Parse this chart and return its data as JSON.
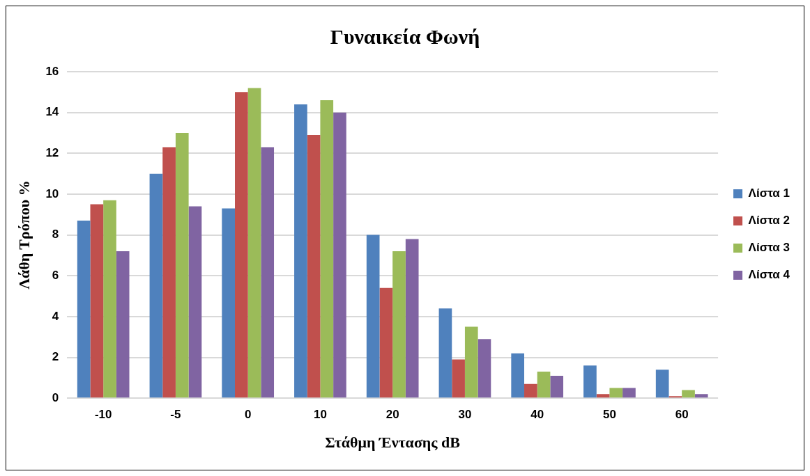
{
  "chart_data": {
    "type": "bar",
    "title": "Γυναικεία Φωνή",
    "xlabel": "Στάθμη Έντασης dB",
    "ylabel": "Λάθη Τρόπου %",
    "categories": [
      "-10",
      "-5",
      "0",
      "10",
      "20",
      "30",
      "40",
      "50",
      "60"
    ],
    "series": [
      {
        "name": "Λίστα 1",
        "color": "#4f81bd",
        "values": [
          8.7,
          11.0,
          9.3,
          14.4,
          8.0,
          4.4,
          2.2,
          1.6,
          1.4
        ]
      },
      {
        "name": "Λίστα 2",
        "color": "#c0504d",
        "values": [
          9.5,
          12.3,
          15.0,
          12.9,
          5.4,
          1.9,
          0.7,
          0.2,
          0.1
        ]
      },
      {
        "name": "Λίστα 3",
        "color": "#9bbb59",
        "values": [
          9.7,
          13.0,
          15.2,
          14.6,
          7.2,
          3.5,
          1.3,
          0.5,
          0.4
        ]
      },
      {
        "name": "Λίστα 4",
        "color": "#8064a2",
        "values": [
          7.2,
          9.4,
          12.3,
          14.0,
          7.8,
          2.9,
          1.1,
          0.5,
          0.2
        ]
      }
    ],
    "ylim": [
      0,
      16
    ],
    "yticks": [
      0,
      2,
      4,
      6,
      8,
      10,
      12,
      14,
      16
    ],
    "grid": "y",
    "legend": "right"
  }
}
